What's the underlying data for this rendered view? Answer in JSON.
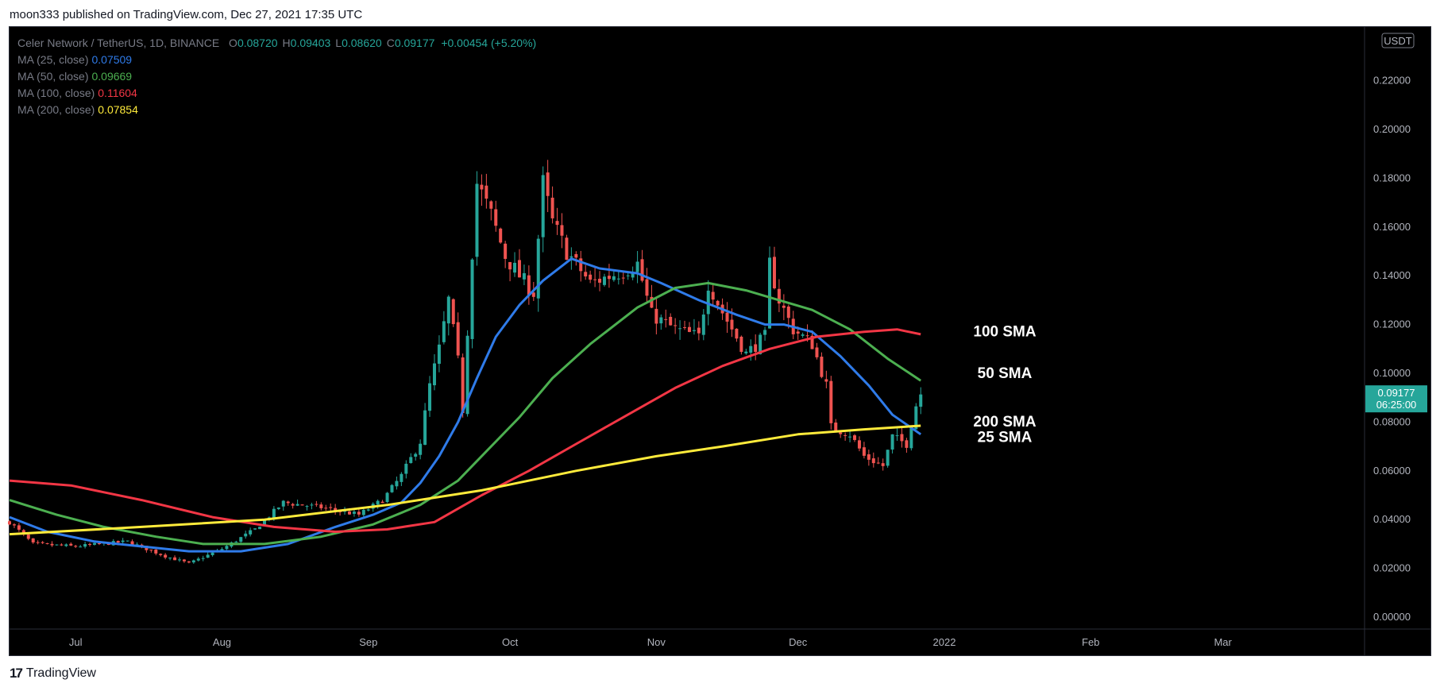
{
  "header": {
    "published": "moon333 published on TradingView.com, Dec 27, 2021 17:35 UTC"
  },
  "footer": {
    "brand": "TradingView"
  },
  "legend": {
    "symbol": "Celer Network / TetherUS, 1D, BINANCE",
    "ohlc": [
      {
        "k": "O",
        "v": "0.08720"
      },
      {
        "k": "H",
        "v": "0.09403"
      },
      {
        "k": "L",
        "v": "0.08620"
      },
      {
        "k": "C",
        "v": "0.09177"
      }
    ],
    "change": "+0.00454 (+5.20%)",
    "mas": [
      {
        "label": "MA (25, close)",
        "value": "0.07509",
        "color": "#2f7be9"
      },
      {
        "label": "MA (50, close)",
        "value": "0.09669",
        "color": "#4caf50"
      },
      {
        "label": "MA (100, close)",
        "value": "0.11604",
        "color": "#f23645"
      },
      {
        "label": "MA (200, close)",
        "value": "0.07854",
        "color": "#ffeb3b"
      }
    ]
  },
  "price_badge": {
    "price": "0.09177",
    "countdown": "06:25:00",
    "color": "#26a69a"
  },
  "currency": "USDT",
  "annotations": [
    {
      "text": "100 SMA",
      "y": 0.1175
    },
    {
      "text": "50 SMA",
      "y": 0.1003
    },
    {
      "text": "200 SMA",
      "y": 0.0805
    },
    {
      "text": "25 SMA",
      "y": 0.0741
    }
  ],
  "colors": {
    "up": "#26a69a",
    "down": "#ef5350",
    "background": "#000000"
  },
  "chart_data": {
    "type": "line",
    "title": "Celer Network / TetherUS, 1D, BINANCE",
    "xlabel": "",
    "ylabel": "",
    "ylim": [
      0,
      0.24
    ],
    "x_range": [
      "2021-06-17",
      "2022-03-31"
    ],
    "y_ticks": [
      "0.00000",
      "0.02000",
      "0.04000",
      "0.06000",
      "0.08000",
      "0.10000",
      "0.12000",
      "0.14000",
      "0.16000",
      "0.18000",
      "0.20000",
      "0.22000"
    ],
    "x_ticks": [
      {
        "label": "Jul",
        "date": "2021-07-01"
      },
      {
        "label": "Aug",
        "date": "2021-08-01"
      },
      {
        "label": "Sep",
        "date": "2021-09-01"
      },
      {
        "label": "Oct",
        "date": "2021-10-01"
      },
      {
        "label": "Nov",
        "date": "2021-11-01"
      },
      {
        "label": "Dec",
        "date": "2021-12-01"
      },
      {
        "label": "2022",
        "date": "2022-01-01"
      },
      {
        "label": "Feb",
        "date": "2022-02-01"
      },
      {
        "label": "Mar",
        "date": "2022-03-01"
      }
    ],
    "close_keypoints": [
      [
        "2021-06-17",
        0.039
      ],
      [
        "2021-06-22",
        0.03
      ],
      [
        "2021-07-01",
        0.029
      ],
      [
        "2021-07-12",
        0.031
      ],
      [
        "2021-07-20",
        0.025
      ],
      [
        "2021-07-25",
        0.022
      ],
      [
        "2021-08-01",
        0.028
      ],
      [
        "2021-08-08",
        0.036
      ],
      [
        "2021-08-14",
        0.047
      ],
      [
        "2021-08-22",
        0.045
      ],
      [
        "2021-08-30",
        0.042
      ],
      [
        "2021-09-04",
        0.048
      ],
      [
        "2021-09-08",
        0.058
      ],
      [
        "2021-09-12",
        0.072
      ],
      [
        "2021-09-14",
        0.095
      ],
      [
        "2021-09-16",
        0.11
      ],
      [
        "2021-09-18",
        0.13
      ],
      [
        "2021-09-20",
        0.105
      ],
      [
        "2021-09-21",
        0.085
      ],
      [
        "2021-09-23",
        0.15
      ],
      [
        "2021-09-24",
        0.178
      ],
      [
        "2021-09-27",
        0.165
      ],
      [
        "2021-09-30",
        0.148
      ],
      [
        "2021-10-03",
        0.14
      ],
      [
        "2021-10-06",
        0.133
      ],
      [
        "2021-10-08",
        0.178
      ],
      [
        "2021-10-10",
        0.162
      ],
      [
        "2021-10-13",
        0.15
      ],
      [
        "2021-10-18",
        0.137
      ],
      [
        "2021-10-25",
        0.142
      ],
      [
        "2021-10-28",
        0.145
      ],
      [
        "2021-10-31",
        0.124
      ],
      [
        "2021-11-05",
        0.118
      ],
      [
        "2021-11-10",
        0.115
      ],
      [
        "2021-11-12",
        0.137
      ],
      [
        "2021-11-15",
        0.125
      ],
      [
        "2021-11-20",
        0.108
      ],
      [
        "2021-11-24",
        0.115
      ],
      [
        "2021-11-25",
        0.145
      ],
      [
        "2021-11-27",
        0.13
      ],
      [
        "2021-11-30",
        0.118
      ],
      [
        "2021-12-04",
        0.112
      ],
      [
        "2021-12-07",
        0.095
      ],
      [
        "2021-12-08",
        0.078
      ],
      [
        "2021-12-12",
        0.075
      ],
      [
        "2021-12-15",
        0.066
      ],
      [
        "2021-12-19",
        0.062
      ],
      [
        "2021-12-21",
        0.074
      ],
      [
        "2021-12-24",
        0.071
      ],
      [
        "2021-12-26",
        0.087
      ],
      [
        "2021-12-27",
        0.0918
      ]
    ],
    "series": [
      {
        "name": "MA (25, close)",
        "color": "#2f7be9",
        "points": [
          [
            "2021-06-17",
            0.041
          ],
          [
            "2021-06-25",
            0.035
          ],
          [
            "2021-07-05",
            0.031
          ],
          [
            "2021-07-15",
            0.029
          ],
          [
            "2021-07-25",
            0.027
          ],
          [
            "2021-08-05",
            0.027
          ],
          [
            "2021-08-15",
            0.03
          ],
          [
            "2021-08-25",
            0.037
          ],
          [
            "2021-09-02",
            0.042
          ],
          [
            "2021-09-08",
            0.047
          ],
          [
            "2021-09-12",
            0.055
          ],
          [
            "2021-09-16",
            0.066
          ],
          [
            "2021-09-20",
            0.08
          ],
          [
            "2021-09-24",
            0.098
          ],
          [
            "2021-09-28",
            0.115
          ],
          [
            "2021-10-03",
            0.128
          ],
          [
            "2021-10-08",
            0.138
          ],
          [
            "2021-10-14",
            0.147
          ],
          [
            "2021-10-20",
            0.143
          ],
          [
            "2021-10-28",
            0.141
          ],
          [
            "2021-11-02",
            0.137
          ],
          [
            "2021-11-10",
            0.13
          ],
          [
            "2021-11-18",
            0.124
          ],
          [
            "2021-11-24",
            0.12
          ],
          [
            "2021-11-28",
            0.12
          ],
          [
            "2021-12-04",
            0.117
          ],
          [
            "2021-12-10",
            0.107
          ],
          [
            "2021-12-16",
            0.095
          ],
          [
            "2021-12-21",
            0.083
          ],
          [
            "2021-12-27",
            0.075
          ]
        ]
      },
      {
        "name": "MA (50, close)",
        "color": "#4caf50",
        "points": [
          [
            "2021-06-17",
            0.048
          ],
          [
            "2021-06-27",
            0.042
          ],
          [
            "2021-07-07",
            0.037
          ],
          [
            "2021-07-18",
            0.033
          ],
          [
            "2021-07-28",
            0.03
          ],
          [
            "2021-08-10",
            0.03
          ],
          [
            "2021-08-22",
            0.033
          ],
          [
            "2021-09-02",
            0.038
          ],
          [
            "2021-09-12",
            0.046
          ],
          [
            "2021-09-20",
            0.056
          ],
          [
            "2021-09-26",
            0.068
          ],
          [
            "2021-10-03",
            0.082
          ],
          [
            "2021-10-10",
            0.098
          ],
          [
            "2021-10-18",
            0.112
          ],
          [
            "2021-10-28",
            0.127
          ],
          [
            "2021-11-05",
            0.135
          ],
          [
            "2021-11-12",
            0.137
          ],
          [
            "2021-11-20",
            0.134
          ],
          [
            "2021-11-27",
            0.13
          ],
          [
            "2021-12-04",
            0.126
          ],
          [
            "2021-12-12",
            0.118
          ],
          [
            "2021-12-20",
            0.106
          ],
          [
            "2021-12-27",
            0.097
          ]
        ]
      },
      {
        "name": "MA (100, close)",
        "color": "#f23645",
        "points": [
          [
            "2021-06-17",
            0.056
          ],
          [
            "2021-06-30",
            0.054
          ],
          [
            "2021-07-15",
            0.048
          ],
          [
            "2021-07-30",
            0.041
          ],
          [
            "2021-08-12",
            0.037
          ],
          [
            "2021-08-25",
            0.035
          ],
          [
            "2021-09-05",
            0.036
          ],
          [
            "2021-09-15",
            0.039
          ],
          [
            "2021-09-25",
            0.05
          ],
          [
            "2021-10-05",
            0.06
          ],
          [
            "2021-10-15",
            0.071
          ],
          [
            "2021-10-25",
            0.082
          ],
          [
            "2021-11-05",
            0.094
          ],
          [
            "2021-11-15",
            0.103
          ],
          [
            "2021-11-25",
            0.11
          ],
          [
            "2021-12-05",
            0.115
          ],
          [
            "2021-12-15",
            0.117
          ],
          [
            "2021-12-22",
            0.118
          ],
          [
            "2021-12-27",
            0.116
          ]
        ]
      },
      {
        "name": "MA (200, close)",
        "color": "#ffeb3b",
        "points": [
          [
            "2021-06-17",
            0.034
          ],
          [
            "2021-07-15",
            0.037
          ],
          [
            "2021-08-10",
            0.04
          ],
          [
            "2021-09-05",
            0.046
          ],
          [
            "2021-09-25",
            0.052
          ],
          [
            "2021-10-15",
            0.06
          ],
          [
            "2021-11-01",
            0.066
          ],
          [
            "2021-11-15",
            0.07
          ],
          [
            "2021-12-01",
            0.075
          ],
          [
            "2021-12-15",
            0.077
          ],
          [
            "2021-12-27",
            0.0785
          ]
        ]
      }
    ]
  }
}
